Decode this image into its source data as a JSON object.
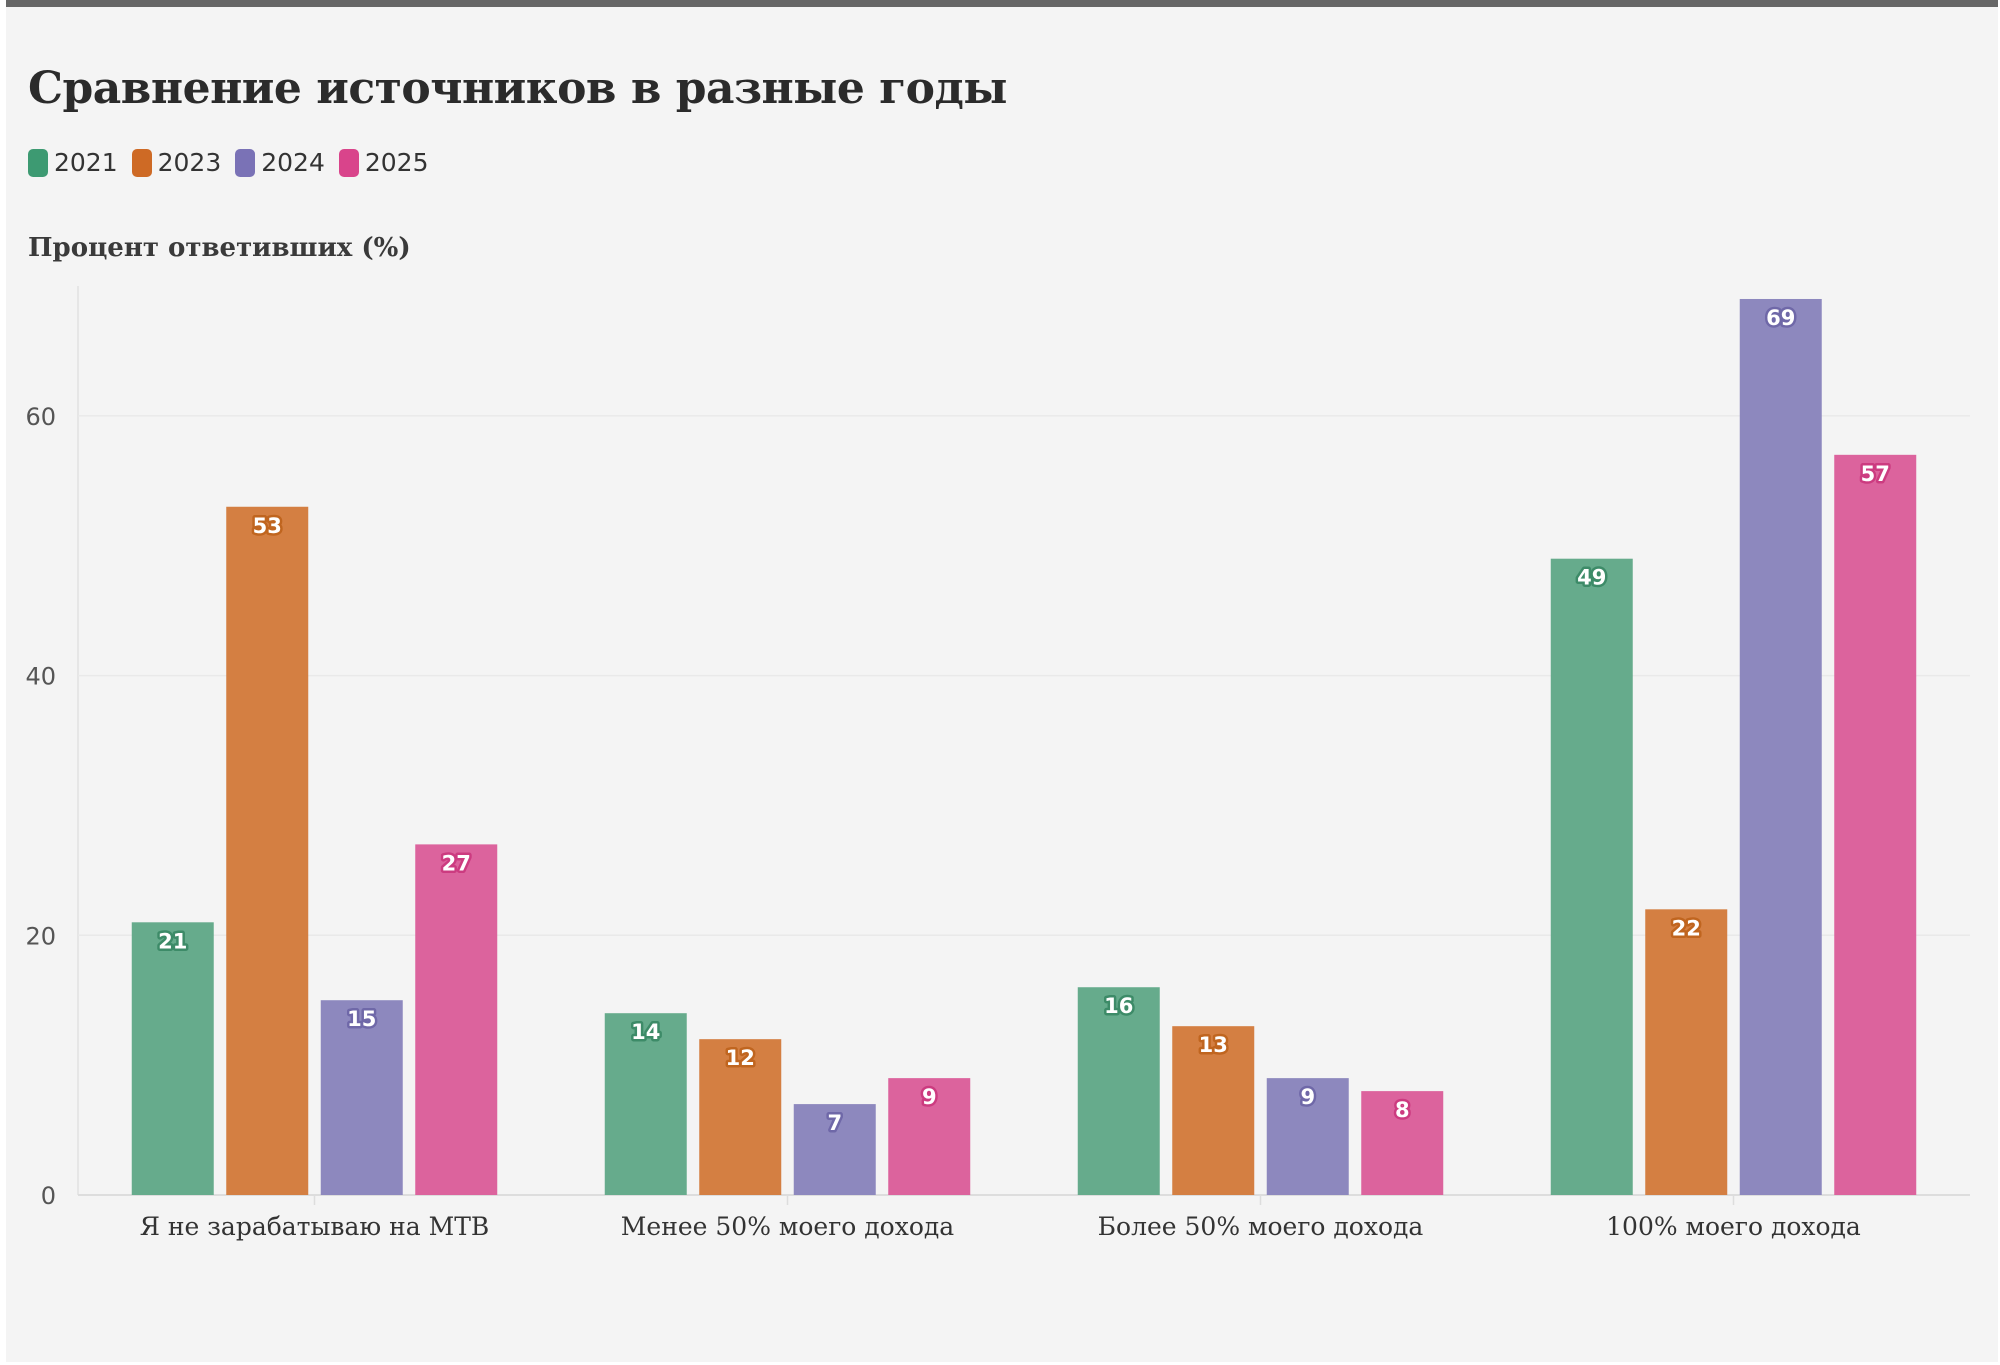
{
  "chart_data": {
    "type": "bar",
    "title": "Сравнение источников в разные годы",
    "ylabel": "Процент ответивших (%)",
    "xlabel": "",
    "categories": [
      "Я не зарабатываю на МТВ",
      "Менее 50% моего дохода",
      "Более 50% моего дохода",
      "100% моего дохода"
    ],
    "series": [
      {
        "name": "2021",
        "color": "#66ab8c",
        "values": [
          21,
          14,
          16,
          49
        ]
      },
      {
        "name": "2023",
        "color": "#d47f42",
        "values": [
          53,
          12,
          13,
          22
        ]
      },
      {
        "name": "2024",
        "color": "#8d88be",
        "values": [
          15,
          7,
          9,
          69
        ]
      },
      {
        "name": "2025",
        "color": "#dc639d",
        "values": [
          27,
          9,
          8,
          57
        ]
      }
    ],
    "ylim": [
      0,
      70
    ],
    "yticks": [
      0,
      20,
      40,
      60
    ],
    "grid": true,
    "legend_position": "top-left"
  },
  "legend_colors": [
    "#3d9a72",
    "#ce6a25",
    "#7a72b6",
    "#d9448b"
  ],
  "label_outline_colors": [
    "#3d8b68",
    "#c0651f",
    "#6f68a8",
    "#cc3b80"
  ]
}
